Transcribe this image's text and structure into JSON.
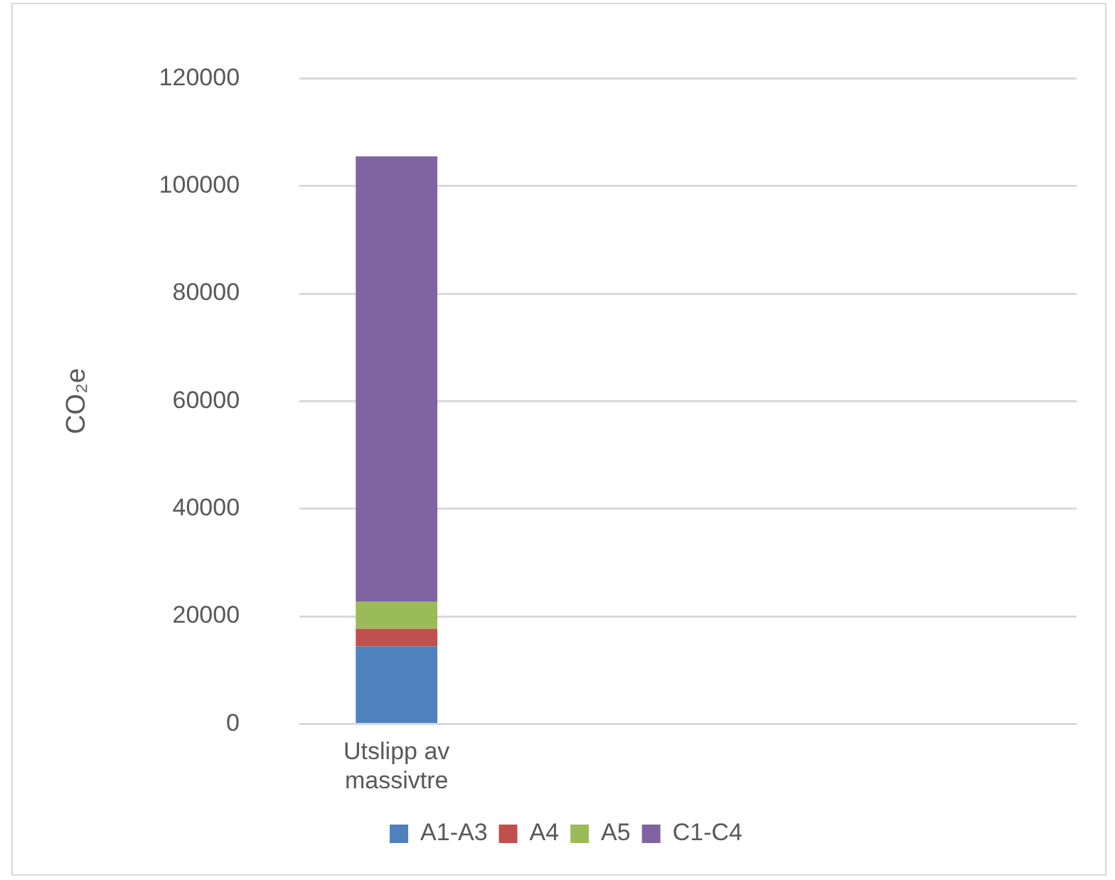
{
  "chart_data": {
    "type": "bar",
    "stacked": true,
    "ylabel": "CO₂e",
    "categories": [
      "Utslipp av massivtre",
      null,
      null,
      null
    ],
    "series": [
      {
        "name": "A1-A3",
        "color": "#4f81bd",
        "values": [
          14400,
          null,
          null,
          null
        ]
      },
      {
        "name": "A4",
        "color": "#c0504d",
        "values": [
          3300,
          null,
          null,
          null
        ]
      },
      {
        "name": "A5",
        "color": "#9bbb59",
        "values": [
          5000,
          null,
          null,
          null
        ]
      },
      {
        "name": "C1-C4",
        "color": "#8064a2",
        "values": [
          82800,
          null,
          null,
          null
        ]
      }
    ],
    "ylim": [
      0,
      120000
    ],
    "yticks": [
      0,
      20000,
      40000,
      60000,
      80000,
      100000,
      120000
    ],
    "grid": "y",
    "legend": "bottom"
  }
}
